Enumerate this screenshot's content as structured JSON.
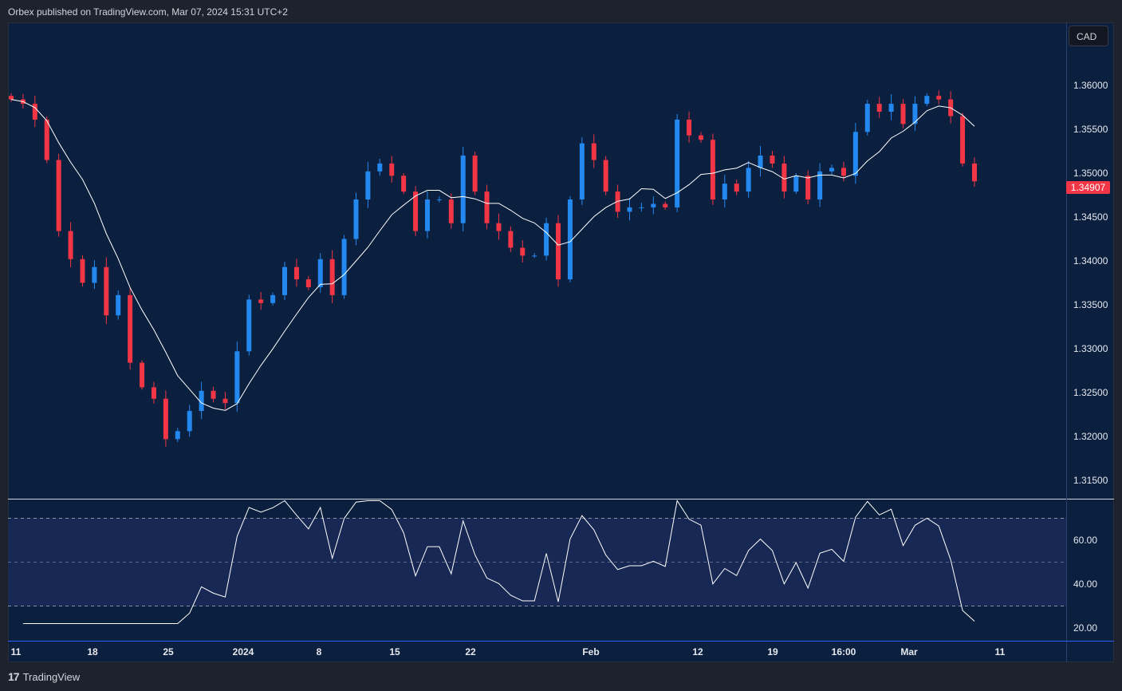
{
  "header": {
    "publisher_text": "Orbex published on TradingView.com, Mar 07, 2024 15:31 UTC+2"
  },
  "currency_button": "CAD",
  "last_price_label": "1.34907",
  "footer": {
    "brand": "TradingView"
  },
  "colors": {
    "up": "#2389f0",
    "down": "#f23645",
    "ma": "#ffffff",
    "rsi": "#ffffff",
    "background": "#0b1f3f"
  },
  "chart_data": {
    "type": "candlestick",
    "symbol_currency": "CAD",
    "y_ticks": [
      "1.36000",
      "1.35500",
      "1.35000",
      "1.34500",
      "1.34000",
      "1.33500",
      "1.33000",
      "1.32500",
      "1.32000",
      "1.31500"
    ],
    "ylim": [
      1.3115,
      1.3635
    ],
    "x_ticks": [
      "11",
      "18",
      "25",
      "2024",
      "8",
      "15",
      "22",
      "Feb",
      "12",
      "19",
      "16:00",
      "Mar",
      "11"
    ],
    "close": [
      1.3584,
      1.3579,
      1.3561,
      1.3515,
      1.3434,
      1.3402,
      1.3375,
      1.3393,
      1.3338,
      1.3361,
      1.3284,
      1.3256,
      1.3243,
      1.3197,
      1.3206,
      1.3229,
      1.3252,
      1.3243,
      1.3238,
      1.3297,
      1.3356,
      1.3352,
      1.3361,
      1.3393,
      1.3379,
      1.337,
      1.3402,
      1.3361,
      1.3425,
      1.347,
      1.3502,
      1.3511,
      1.3497,
      1.3479,
      1.3434,
      1.347,
      1.347,
      1.3443,
      1.352,
      1.3479,
      1.3443,
      1.3434,
      1.3415,
      1.3406,
      1.3406,
      1.3443,
      1.3379,
      1.347,
      1.3534,
      1.3515,
      1.3479,
      1.3456,
      1.3461,
      1.3461,
      1.3465,
      1.3461,
      1.3561,
      1.3543,
      1.3538,
      1.347,
      1.3488,
      1.3479,
      1.3506,
      1.352,
      1.3511,
      1.3479,
      1.3497,
      1.347,
      1.3502,
      1.3506,
      1.3497,
      1.3547,
      1.3579,
      1.357,
      1.3579,
      1.3556,
      1.3579,
      1.3588,
      1.3584,
      1.3565,
      1.3511,
      1.34907
    ],
    "moving_average": {
      "type": "SMA",
      "period": 7
    },
    "rsi": {
      "period": 5,
      "y_ticks": [
        "60.00",
        "40.00",
        "20.00"
      ],
      "bands": [
        70,
        50,
        30
      ],
      "ylim": [
        15,
        80
      ]
    }
  }
}
